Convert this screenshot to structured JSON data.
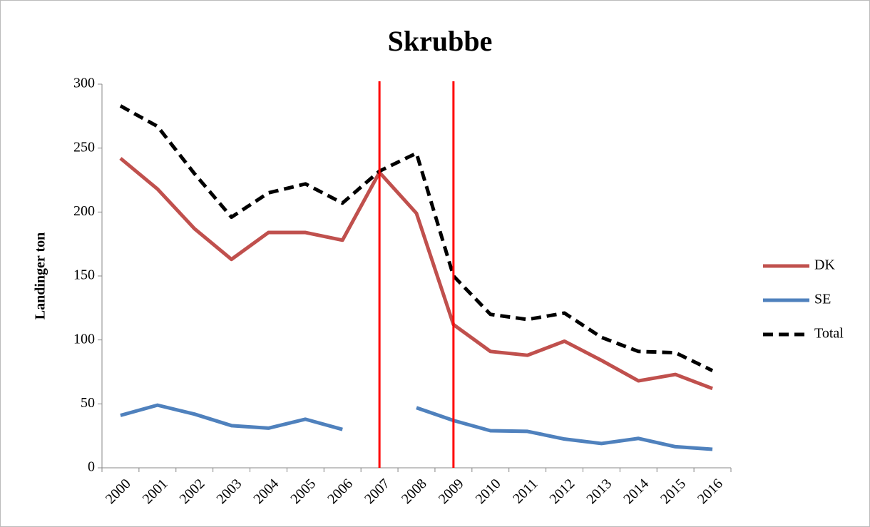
{
  "chart_data": {
    "type": "line",
    "title": "Skrubbe",
    "y_label": "Landinger ton",
    "categories": [
      "2000",
      "2001",
      "2002",
      "2003",
      "2004",
      "2005",
      "2006",
      "2007",
      "2008",
      "2009",
      "2010",
      "2011",
      "2012",
      "2013",
      "2014",
      "2015",
      "2016"
    ],
    "series": [
      {
        "name": "DK",
        "color": "#c0504d",
        "dash": "solid",
        "values": [
          242,
          218,
          187,
          163,
          184,
          184,
          178,
          231,
          199,
          112,
          91,
          88,
          99,
          84,
          68,
          73,
          62
        ]
      },
      {
        "name": "SE",
        "color": "#4f81bd",
        "dash": "solid",
        "values": [
          41,
          49,
          42,
          33,
          31,
          38,
          30,
          null,
          47,
          37,
          29,
          28.5,
          22.5,
          19,
          23,
          16.5,
          14.5
        ]
      },
      {
        "name": "Total",
        "color": "#000000",
        "dash": "dashed",
        "values": [
          283,
          267,
          230,
          196,
          215,
          222,
          207,
          232,
          246,
          150,
          120,
          116,
          121,
          102,
          91,
          90,
          76
        ]
      }
    ],
    "vertical_lines": [
      {
        "at": "2007",
        "color": "#ff0000"
      },
      {
        "at": "2009",
        "color": "#ff0000"
      }
    ],
    "ylim": [
      0,
      300
    ],
    "yticks": [
      0,
      50,
      100,
      150,
      200,
      250,
      300
    ],
    "grid": false,
    "legend": "right"
  }
}
